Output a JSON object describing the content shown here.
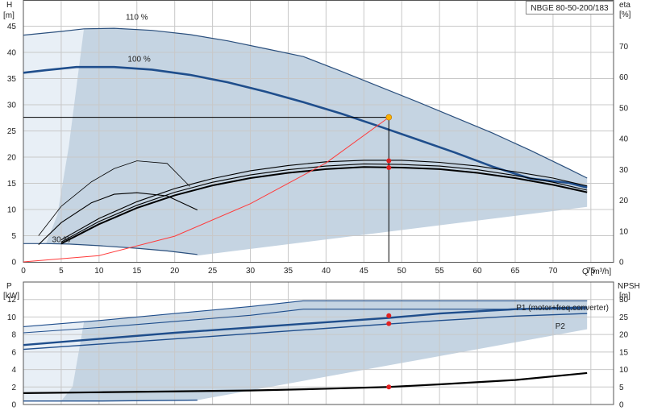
{
  "chart_data": [
    {
      "type": "line",
      "title": "NBGE 80-50-200/183",
      "xlabel": "Q [m³/h]",
      "ylabel_left": "H",
      "ylabel_left_unit": "[m]",
      "ylabel_right": "eta",
      "ylabel_right_unit": "[%]",
      "xlim": [
        0,
        78
      ],
      "ylim_left": [
        0,
        50
      ],
      "ylim_right": [
        0,
        85
      ],
      "x_ticks": [
        "0",
        "5",
        "10",
        "15",
        "20",
        "25",
        "30",
        "35",
        "40",
        "45",
        "50",
        "55",
        "60",
        "65",
        "70",
        "75"
      ],
      "y_left_ticks": [
        "0",
        "5",
        "10",
        "15",
        "20",
        "25",
        "30",
        "35",
        "40",
        "45"
      ],
      "y_right_ticks": [
        "0",
        "10",
        "20",
        "30",
        "40",
        "50",
        "60",
        "70"
      ],
      "speed_labels": [
        "110 %",
        "100 %",
        "30 %"
      ],
      "duty_point": {
        "x": 48.3,
        "y": 27.6
      },
      "colors": {
        "envelope": "#c5d4e2",
        "head_curve": "#1f4e8c",
        "thin_curve": "#2a4f7d",
        "system_curve": "#ff3b3b",
        "duty_marker": "#ffb100",
        "eff_marker": "#e32020"
      },
      "series": [
        {
          "name": "110 %",
          "x": [
            0,
            5,
            8,
            12,
            17,
            22,
            27,
            32,
            37,
            42,
            47,
            52,
            57,
            62,
            67,
            72,
            74.5
          ],
          "y": [
            43.3,
            44,
            44.5,
            44.6,
            44.2,
            43.4,
            42.2,
            40.7,
            39.2,
            36.4,
            33.5,
            30.6,
            27.6,
            24.6,
            21.3,
            17.8,
            16.0
          ]
        },
        {
          "name": "100 %",
          "x": [
            0,
            3,
            7,
            12,
            17,
            22,
            27,
            32,
            37,
            42,
            47,
            52,
            57,
            62,
            67,
            72,
            74.5
          ],
          "y": [
            36.1,
            36.6,
            37.2,
            37.2,
            36.7,
            35.7,
            34.3,
            32.5,
            30.5,
            28.3,
            25.9,
            23.4,
            20.9,
            18.2,
            15.9,
            15.1,
            14.2
          ]
        },
        {
          "name": "30 %",
          "x": [
            0,
            3,
            6,
            10,
            15,
            19,
            23
          ],
          "y": [
            3.5,
            3.5,
            3.4,
            3.1,
            2.6,
            2.1,
            1.4
          ]
        },
        {
          "name": "system",
          "x": [
            0,
            10,
            20,
            30,
            40,
            48.3
          ],
          "y": [
            0,
            1.2,
            4.9,
            11.1,
            18.9,
            27.6
          ]
        },
        {
          "name": "eff-110",
          "x": [
            5,
            10,
            15,
            20,
            25,
            30,
            35,
            40,
            45,
            50,
            55,
            60,
            65,
            70,
            74.5
          ],
          "y": [
            4.2,
            8.3,
            11.5,
            14.0,
            15.9,
            17.4,
            18.4,
            19.1,
            19.4,
            19.4,
            19.0,
            18.3,
            17.2,
            16.0,
            14.5
          ]
        },
        {
          "name": "eff-100",
          "x": [
            5,
            10,
            15,
            20,
            25,
            30,
            35,
            40,
            45,
            50,
            55,
            60,
            65,
            70,
            74.5
          ],
          "y": [
            3.8,
            7.7,
            10.8,
            13.3,
            15.2,
            16.6,
            17.6,
            18.3,
            18.7,
            18.6,
            18.3,
            17.6,
            16.5,
            15.2,
            13.7
          ]
        },
        {
          "name": "eff-mid",
          "x": [
            5,
            10,
            15,
            20,
            25,
            30,
            35,
            40,
            45,
            50,
            55,
            60,
            65,
            70,
            74.5
          ],
          "y": [
            3.5,
            7.2,
            10.3,
            12.7,
            14.6,
            16.0,
            17.0,
            17.7,
            18.1,
            18.0,
            17.7,
            17.0,
            16.0,
            14.7,
            13.3
          ]
        },
        {
          "name": "eff-low-a",
          "x": [
            2,
            5,
            9,
            12,
            15,
            19,
            22
          ],
          "y": [
            5.0,
            10.6,
            15.3,
            17.8,
            19.3,
            18.8,
            14.4
          ]
        },
        {
          "name": "eff-low-b",
          "x": [
            2,
            5,
            9,
            12,
            15,
            19,
            23
          ],
          "y": [
            3.3,
            7.5,
            11.3,
            12.9,
            13.2,
            12.6,
            9.9
          ]
        }
      ],
      "eff_points": [
        {
          "x": 48.3,
          "y": 19.3
        },
        {
          "x": 48.3,
          "y": 18.0
        }
      ]
    },
    {
      "type": "line",
      "ylabel_left": "P",
      "ylabel_left_unit": "[kW]",
      "ylabel_right": "NPSH",
      "ylabel_right_unit": "[m]",
      "xlim": [
        0,
        78
      ],
      "ylim_left": [
        0,
        14
      ],
      "ylim_right": [
        0,
        35
      ],
      "y_left_ticks": [
        "0",
        "2",
        "4",
        "6",
        "8",
        "10",
        "12"
      ],
      "y_right_ticks": [
        "0",
        "5",
        "10",
        "15",
        "20",
        "25",
        "30"
      ],
      "legend": [
        "P1 (motor+freq.converter)",
        "P2"
      ],
      "colors": {
        "p_curve": "#1f4e8c",
        "npsh_curve": "#000000",
        "marker": "#e32020"
      },
      "series": [
        {
          "name": "P1 (motor+freq.converter)",
          "x": [
            0,
            10,
            20,
            30,
            37,
            45,
            55,
            65,
            74.5
          ],
          "y": [
            8.9,
            9.6,
            10.4,
            11.2,
            11.85,
            11.85,
            11.85,
            11.85,
            11.85
          ]
        },
        {
          "name": "P1-100",
          "x": [
            0,
            10,
            20,
            30,
            37,
            45,
            55,
            65,
            74.5
          ],
          "y": [
            8.2,
            8.8,
            9.5,
            10.2,
            10.9,
            10.9,
            10.9,
            10.9,
            10.9
          ]
        },
        {
          "name": "P1-op",
          "x": [
            0,
            10,
            20,
            30,
            40,
            48.3,
            55,
            65,
            74.5
          ],
          "y": [
            6.8,
            7.5,
            8.2,
            8.8,
            9.4,
            9.9,
            10.4,
            10.9,
            11.1
          ]
        },
        {
          "name": "P2",
          "x": [
            0,
            10,
            20,
            30,
            40,
            48.3,
            55,
            65,
            74.5
          ],
          "y": [
            6.3,
            6.9,
            7.5,
            8.1,
            8.7,
            9.2,
            9.6,
            10.1,
            10.4
          ]
        },
        {
          "name": "P-30",
          "x": [
            0,
            10,
            23
          ],
          "y": [
            0.4,
            0.4,
            0.5
          ]
        },
        {
          "name": "NPSH",
          "x": [
            0,
            10,
            20,
            30,
            40,
            48.3,
            55,
            65,
            74.5
          ],
          "y": [
            1.3,
            1.4,
            1.5,
            1.6,
            1.8,
            2.0,
            2.3,
            2.8,
            3.6
          ]
        }
      ],
      "markers": [
        {
          "x": 48.3,
          "y": 10.15
        },
        {
          "x": 48.3,
          "y": 9.25
        },
        {
          "x": 48.3,
          "y": 2.0
        }
      ]
    }
  ]
}
